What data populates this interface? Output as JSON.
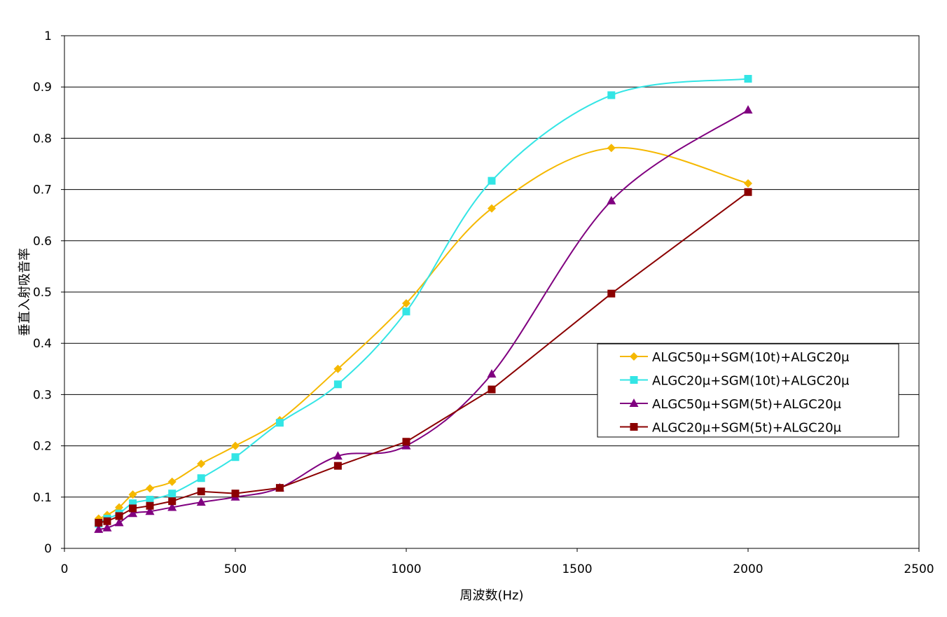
{
  "chart_data": {
    "type": "line",
    "title": "",
    "xlabel": "周波数(Hz)",
    "ylabel": "垂直入射吸音率",
    "xlim": [
      0,
      2500
    ],
    "ylim": [
      0,
      1
    ],
    "x_ticks": [
      "0",
      "500",
      "1000",
      "1500",
      "2000",
      "2500"
    ],
    "y_ticks": [
      "0",
      "0.1",
      "0.2",
      "0.3",
      "0.4",
      "0.5",
      "0.6",
      "0.7",
      "0.8",
      "0.9",
      "1"
    ],
    "grid": "horizontal",
    "legend_position": "right",
    "series": [
      {
        "name": "ALGC50μ+SGM(10t)+ALGC20μ",
        "color": "#F5B800",
        "marker": "diamond",
        "x": [
          100,
          125,
          160,
          200,
          250,
          315,
          400,
          500,
          630,
          800,
          1000,
          1250,
          1600,
          2000
        ],
        "values": [
          0.058,
          0.065,
          0.08,
          0.105,
          0.117,
          0.13,
          0.165,
          0.2,
          0.25,
          0.35,
          0.478,
          0.663,
          0.781,
          0.712
        ]
      },
      {
        "name": "ALGC20μ+SGM(10t)+ALGC20μ",
        "color": "#33E5E5",
        "marker": "square",
        "x": [
          100,
          125,
          160,
          200,
          250,
          315,
          400,
          500,
          630,
          800,
          1000,
          1250,
          1600,
          2000
        ],
        "values": [
          0.048,
          0.058,
          0.068,
          0.088,
          0.095,
          0.107,
          0.137,
          0.178,
          0.245,
          0.32,
          0.462,
          0.717,
          0.884,
          0.916
        ]
      },
      {
        "name": "ALGC50μ+SGM(5t)+ALGC20μ",
        "color": "#800080",
        "marker": "triangle",
        "x": [
          100,
          125,
          160,
          200,
          250,
          315,
          400,
          500,
          630,
          800,
          1000,
          1250,
          1600,
          2000
        ],
        "values": [
          0.037,
          0.04,
          0.05,
          0.068,
          0.072,
          0.08,
          0.09,
          0.1,
          0.118,
          0.18,
          0.2,
          0.34,
          0.678,
          0.855
        ]
      },
      {
        "name": "ALGC20μ+SGM(5t)+ALGC20μ",
        "color": "#8B0000",
        "marker": "square",
        "x": [
          100,
          125,
          160,
          200,
          250,
          315,
          400,
          500,
          630,
          800,
          1000,
          1250,
          1600,
          2000
        ],
        "values": [
          0.05,
          0.053,
          0.063,
          0.078,
          0.083,
          0.092,
          0.111,
          0.107,
          0.118,
          0.161,
          0.208,
          0.31,
          0.497,
          0.695
        ]
      }
    ]
  }
}
